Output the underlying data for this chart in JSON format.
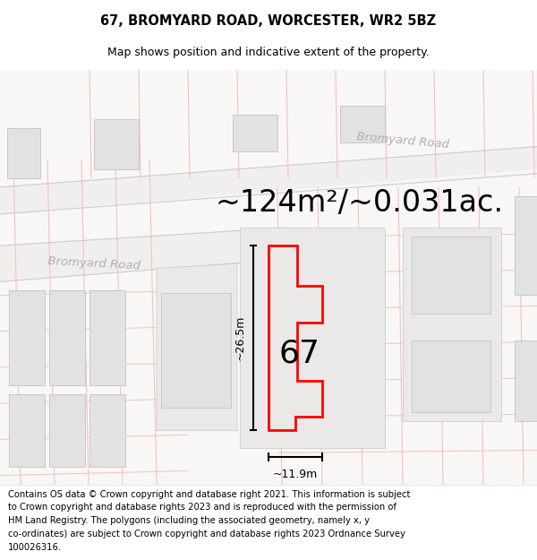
{
  "title": "67, BROMYARD ROAD, WORCESTER, WR2 5BZ",
  "subtitle": "Map shows position and indicative extent of the property.",
  "area_text": "~124m²/~0.031ac.",
  "number_label": "67",
  "dim_height": "~26.5m",
  "dim_width": "~11.9m",
  "road_label_diagonal": "Bromyard Road",
  "road_label_left": "Bromyard Road",
  "footer_lines": [
    "Contains OS data © Crown copyright and database right 2021. This information is subject",
    "to Crown copyright and database rights 2023 and is reproduced with the permission of",
    "HM Land Registry. The polygons (including the associated geometry, namely x, y",
    "co-ordinates) are subject to Crown copyright and database rights 2023 Ordnance Survey",
    "100026316."
  ],
  "map_bg": "#f8f7f5",
  "property_edge": "#ff0000",
  "pink_line_color": "#f5c0c0",
  "gray_line_color": "#cccccc",
  "road_fill": "#f0efed",
  "building_fill": "#e2e2e2",
  "building_edge": "#c8c8c8",
  "block_fill": "#e8e7e5",
  "title_fontsize": 10.5,
  "subtitle_fontsize": 9,
  "area_fontsize": 24,
  "footer_fontsize": 7.2,
  "number_fontsize": 26
}
